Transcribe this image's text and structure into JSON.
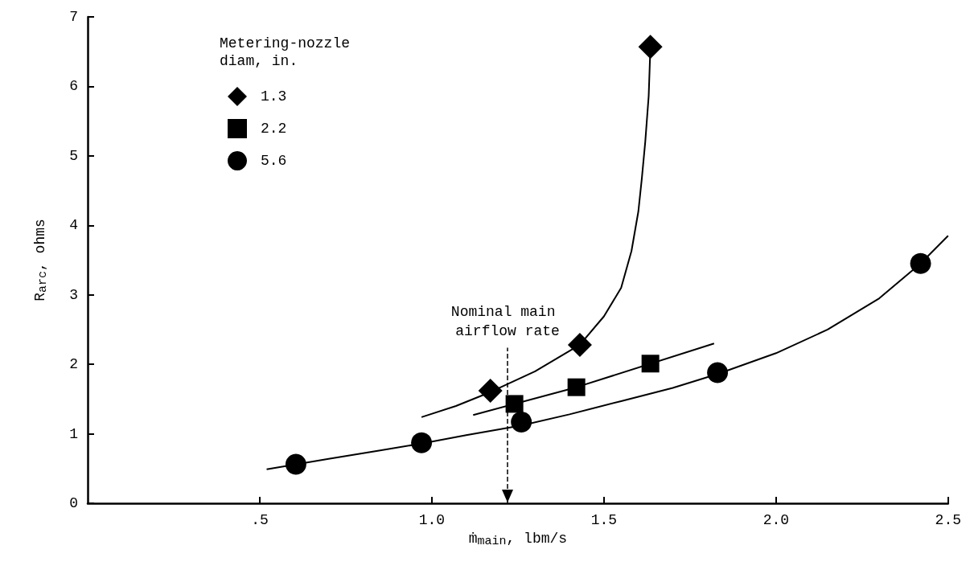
{
  "chart_data": {
    "type": "scatter",
    "xlabel": "ṁ$_{main}$, lbm/s",
    "ylabel": "R$_{arc}$, ohms",
    "legend_title": "Metering-nozzle diam, in.",
    "legend": "top left",
    "grid": false,
    "xlim": [
      0,
      2.5
    ],
    "xticks": [
      {
        "value": 0.5,
        "label": ".5"
      },
      {
        "value": 1,
        "label": "1.0"
      },
      {
        "value": 1.5,
        "label": "1.5"
      },
      {
        "value": 2,
        "label": "2.0"
      },
      {
        "value": 2.5,
        "label": "2.5"
      }
    ],
    "ylim": [
      0,
      7
    ],
    "yticks": [
      0,
      1,
      2,
      3,
      4,
      5,
      6,
      7
    ],
    "series": [
      {
        "name": "1.3",
        "color": "#000000",
        "marker": "diamond",
        "x": [
          1.17,
          1.43,
          1.635
        ],
        "values": [
          1.62,
          2.28,
          6.57
        ]
      },
      {
        "name": "2.2",
        "color": "#000000",
        "marker": "square",
        "x": [
          1.24,
          1.42,
          1.635
        ],
        "values": [
          1.43,
          1.67,
          2.01
        ]
      },
      {
        "name": "5.6",
        "color": "#000000",
        "marker": "circle",
        "x": [
          0.605,
          0.97,
          1.26,
          1.83,
          2.42
        ],
        "values": [
          0.56,
          0.87,
          1.17,
          1.88,
          3.45
        ]
      },
      {
        "type": "line",
        "color": "#000000",
        "marker": "none",
        "x": [
          0.97,
          1.07,
          1.17,
          1.3,
          1.43,
          1.5,
          1.55,
          1.58,
          1.6,
          1.61,
          1.62,
          1.63,
          1.635
        ],
        "values": [
          1.24,
          1.4,
          1.6,
          1.9,
          2.28,
          2.69,
          3.1,
          3.63,
          4.2,
          4.67,
          5.2,
          5.86,
          6.57
        ]
      },
      {
        "type": "line",
        "color": "#000000",
        "marker": "none",
        "x": [
          1.12,
          1.42,
          1.82
        ],
        "values": [
          1.27,
          1.67,
          2.3
        ]
      },
      {
        "type": "line",
        "color": "#000000",
        "marker": "none",
        "x": [
          0.52,
          0.7,
          0.85,
          0.97,
          1.1,
          1.26,
          1.4,
          1.55,
          1.7,
          1.83,
          2.0,
          2.15,
          2.3,
          2.42,
          2.5
        ],
        "values": [
          0.49,
          0.64,
          0.76,
          0.86,
          0.98,
          1.12,
          1.28,
          1.47,
          1.66,
          1.86,
          2.16,
          2.5,
          2.95,
          3.45,
          3.85
        ]
      }
    ],
    "ref_lines": [
      {
        "axis": "x",
        "value": 1.22,
        "label": "Nominal main airflow rate",
        "line_style": "dashed",
        "color": "#000000"
      }
    ]
  }
}
